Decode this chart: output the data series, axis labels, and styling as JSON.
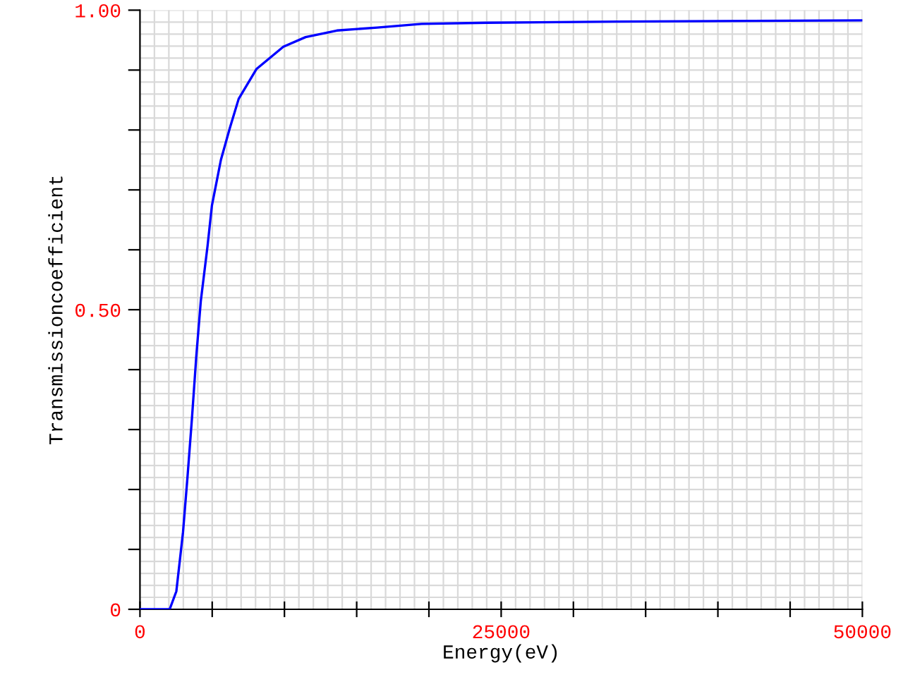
{
  "chart_data": {
    "type": "line",
    "xlabel": "Energy(eV)",
    "ylabel": "Transmissioncoefficient",
    "x": [
      0,
      2055,
      2518,
      2981,
      3287,
      3596,
      3904,
      4213,
      4676,
      4981,
      5602,
      6218,
      6833,
      8071,
      9926,
      11463,
      13630,
      16407,
      19491,
      24000,
      33000,
      50000
    ],
    "series": [
      {
        "color": "#0000ff",
        "values": [
          0,
          0,
          0.03,
          0.129,
          0.22,
          0.318,
          0.424,
          0.515,
          0.606,
          0.674,
          0.75,
          0.803,
          0.852,
          0.902,
          0.939,
          0.955,
          0.966,
          0.971,
          0.977,
          0.979,
          0.981,
          0.983
        ]
      }
    ],
    "xlim": [
      0,
      50000
    ],
    "ylim": [
      0,
      1
    ],
    "xticks": [
      0,
      {
        "value": 5000,
        "label": null
      },
      {
        "value": 10000,
        "label": null
      },
      {
        "value": 15000,
        "label": null
      },
      {
        "value": 20000,
        "label": null
      },
      25000,
      {
        "value": 30000,
        "label": null
      },
      {
        "value": 35000,
        "label": null
      },
      {
        "value": 40000,
        "label": null
      },
      {
        "value": 45000,
        "label": null
      },
      50000
    ],
    "yticks": [
      0,
      {
        "value": 0.1,
        "label": null
      },
      {
        "value": 0.2,
        "label": null
      },
      {
        "value": 0.3,
        "label": null
      },
      {
        "value": 0.4,
        "label": null
      },
      {
        "value": 0.5,
        "label": "0.50"
      },
      {
        "value": 0.6,
        "label": null
      },
      {
        "value": 0.7,
        "label": null
      },
      {
        "value": 0.8,
        "label": null
      },
      {
        "value": 0.9,
        "label": null
      },
      {
        "value": 1,
        "label": "1.00"
      }
    ],
    "grid": true,
    "legend": false,
    "marker": "none",
    "line_style": "solid"
  }
}
